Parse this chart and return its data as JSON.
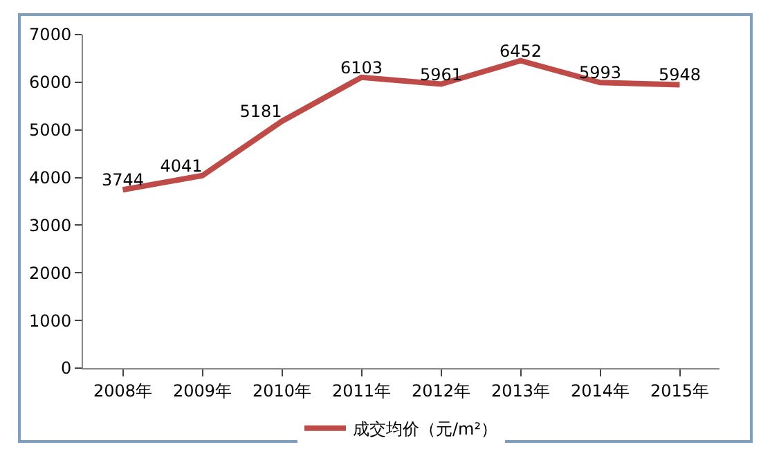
{
  "chart_data": {
    "type": "line",
    "categories": [
      "2008年",
      "2009年",
      "2010年",
      "2011年",
      "2012年",
      "2013年",
      "2014年",
      "2015年"
    ],
    "series": [
      {
        "name": "成交均价（元/m²）",
        "color": "#be4b48",
        "values": [
          3744,
          4041,
          5181,
          6103,
          5961,
          6452,
          5993,
          5948
        ]
      }
    ],
    "ylim": [
      0,
      7000
    ],
    "yticks": [
      0,
      1000,
      2000,
      3000,
      4000,
      5000,
      6000,
      7000
    ],
    "data_labels": true,
    "legend": "bottom",
    "grid": false,
    "marker": "none",
    "line_style": "solid"
  }
}
